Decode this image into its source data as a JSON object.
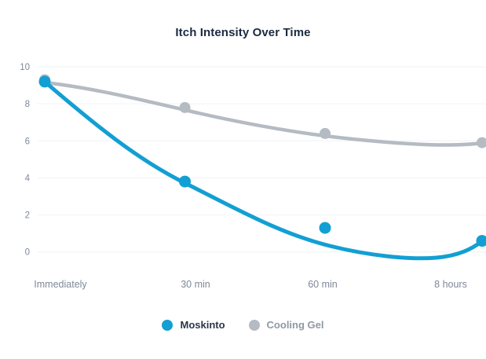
{
  "chart": {
    "title": "Itch Intensity Over Time"
  },
  "chart_data": {
    "type": "line",
    "title": "Itch Intensity Over Time",
    "categories": [
      "Immediately",
      "30 min",
      "60 min",
      "8 hours"
    ],
    "series": [
      {
        "name": "Moskinto",
        "values": [
          9.2,
          3.8,
          1.3,
          0.6
        ],
        "color": "#129fd3",
        "label_color": "#2b3648"
      },
      {
        "name": "Cooling Gel",
        "values": [
          9.3,
          7.8,
          6.4,
          5.9
        ],
        "color": "#b5bbc3",
        "label_color": "#8f98a3"
      }
    ],
    "xlabel": "",
    "ylabel": "",
    "ylim": [
      0,
      10
    ],
    "yticks": [
      0,
      2,
      4,
      6,
      8,
      10
    ],
    "grid": "horizontal-only",
    "gridline_color": "#eff2f5",
    "legend_position": "bottom",
    "curve_style": "smoothed trend curve; markers can deviate from curve",
    "background_color": "#ffffff",
    "axis_label_color": "#7d8998",
    "title_color": "#1b2a41"
  }
}
